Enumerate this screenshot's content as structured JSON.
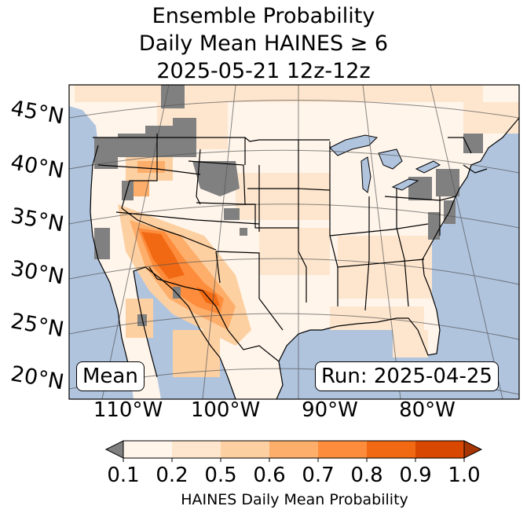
{
  "title": {
    "line1": "Ensemble Probability",
    "line2": "Daily Mean HAINES ≥ 6",
    "line3": "2025-05-21 12z-12z"
  },
  "badges": {
    "left": "Mean",
    "right": "Run: 2025-04-25"
  },
  "lat_labels": [
    "45°N",
    "40°N",
    "35°N",
    "30°N",
    "25°N",
    "20°N"
  ],
  "lon_labels": [
    "110°W",
    "100°W",
    "90°W",
    "80°W"
  ],
  "colorbar": {
    "label": "HAINES Daily Mean Probability",
    "ticks": [
      "0.1",
      "0.2",
      "0.5",
      "0.6",
      "0.7",
      "0.8",
      "0.9",
      "1.0"
    ],
    "under_color": "#808080",
    "colors": [
      "#fff5eb",
      "#fee6ce",
      "#fdd0a2",
      "#fdae6b",
      "#fd8d3c",
      "#f16913",
      "#d94801",
      "#a63603"
    ]
  },
  "colors": {
    "ocean": "#b0c4de",
    "land": "#fff5eb",
    "lakes": "#b0c4de",
    "masked": "#808080"
  }
}
